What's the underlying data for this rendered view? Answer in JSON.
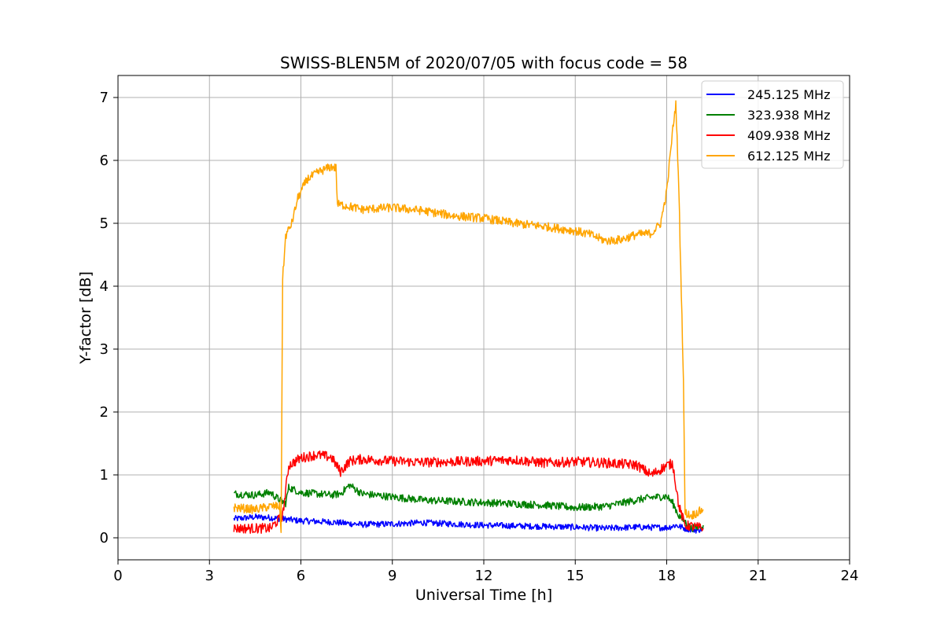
{
  "chart_data": {
    "type": "line",
    "title": "SWISS-BLEN5M of 2020/07/05 with focus code = 58",
    "xlabel": "Universal Time [h]",
    "ylabel": "Y-factor [dB]",
    "xlim": [
      0,
      24
    ],
    "ylim": [
      -0.35,
      7.35
    ],
    "xticks": [
      "0",
      "3",
      "6",
      "9",
      "12",
      "15",
      "18",
      "21",
      "24"
    ],
    "yticks": [
      "0",
      "1",
      "2",
      "3",
      "4",
      "5",
      "6",
      "7"
    ],
    "grid": true,
    "legend_position": "top-right",
    "series": [
      {
        "name": "245.125 MHz",
        "color": "#0000ff",
        "noise": 0.05,
        "points": [
          [
            3.8,
            0.3
          ],
          [
            4.5,
            0.33
          ],
          [
            5.0,
            0.32
          ],
          [
            5.4,
            0.3
          ],
          [
            5.6,
            0.29
          ],
          [
            6.0,
            0.27
          ],
          [
            7.0,
            0.25
          ],
          [
            8.0,
            0.21
          ],
          [
            9.0,
            0.22
          ],
          [
            10.0,
            0.24
          ],
          [
            12.0,
            0.2
          ],
          [
            13.0,
            0.19
          ],
          [
            15.0,
            0.17
          ],
          [
            16.0,
            0.15
          ],
          [
            17.0,
            0.17
          ],
          [
            18.0,
            0.16
          ],
          [
            18.3,
            0.2
          ],
          [
            18.6,
            0.15
          ],
          [
            19.0,
            0.12
          ],
          [
            19.2,
            0.15
          ]
        ]
      },
      {
        "name": "323.938 MHz",
        "color": "#008000",
        "noise": 0.06,
        "points": [
          [
            3.8,
            0.7
          ],
          [
            4.5,
            0.68
          ],
          [
            5.0,
            0.72
          ],
          [
            5.3,
            0.6
          ],
          [
            5.5,
            0.55
          ],
          [
            5.6,
            0.8
          ],
          [
            6.0,
            0.72
          ],
          [
            7.0,
            0.68
          ],
          [
            7.3,
            0.7
          ],
          [
            7.6,
            0.84
          ],
          [
            8.0,
            0.7
          ],
          [
            9.0,
            0.65
          ],
          [
            10.0,
            0.6
          ],
          [
            12.0,
            0.56
          ],
          [
            14.0,
            0.52
          ],
          [
            15.0,
            0.48
          ],
          [
            16.0,
            0.5
          ],
          [
            17.0,
            0.6
          ],
          [
            17.5,
            0.64
          ],
          [
            18.0,
            0.66
          ],
          [
            18.2,
            0.55
          ],
          [
            18.4,
            0.35
          ],
          [
            18.8,
            0.15
          ],
          [
            19.2,
            0.2
          ]
        ]
      },
      {
        "name": "409.938 MHz",
        "color": "#ff0000",
        "noise": 0.08,
        "points": [
          [
            3.8,
            0.15
          ],
          [
            4.5,
            0.15
          ],
          [
            5.0,
            0.15
          ],
          [
            5.4,
            0.35
          ],
          [
            5.6,
            1.15
          ],
          [
            6.0,
            1.27
          ],
          [
            6.5,
            1.32
          ],
          [
            7.0,
            1.28
          ],
          [
            7.3,
            1.05
          ],
          [
            7.6,
            1.22
          ],
          [
            8.0,
            1.25
          ],
          [
            9.0,
            1.22
          ],
          [
            10.0,
            1.2
          ],
          [
            12.0,
            1.22
          ],
          [
            13.0,
            1.24
          ],
          [
            14.0,
            1.19
          ],
          [
            15.0,
            1.21
          ],
          [
            16.0,
            1.19
          ],
          [
            17.0,
            1.16
          ],
          [
            17.5,
            1.0
          ],
          [
            18.0,
            1.15
          ],
          [
            18.2,
            1.18
          ],
          [
            18.4,
            0.5
          ],
          [
            18.6,
            0.2
          ],
          [
            19.2,
            0.15
          ]
        ]
      },
      {
        "name": "612.125 MHz",
        "color": "#ffa500",
        "noise": 0.07,
        "points": [
          [
            3.8,
            0.48
          ],
          [
            4.5,
            0.45
          ],
          [
            5.0,
            0.5
          ],
          [
            5.3,
            0.5
          ],
          [
            5.35,
            0.1
          ],
          [
            5.4,
            4.1
          ],
          [
            5.5,
            4.8
          ],
          [
            5.7,
            5.0
          ],
          [
            5.9,
            5.4
          ],
          [
            6.2,
            5.7
          ],
          [
            6.6,
            5.82
          ],
          [
            7.0,
            5.9
          ],
          [
            7.15,
            5.88
          ],
          [
            7.2,
            5.3
          ],
          [
            7.5,
            5.28
          ],
          [
            8.0,
            5.22
          ],
          [
            9.0,
            5.25
          ],
          [
            10.0,
            5.2
          ],
          [
            11.0,
            5.12
          ],
          [
            12.0,
            5.08
          ],
          [
            13.0,
            5.0
          ],
          [
            14.0,
            4.95
          ],
          [
            15.0,
            4.88
          ],
          [
            15.5,
            4.82
          ],
          [
            16.0,
            4.72
          ],
          [
            16.5,
            4.74
          ],
          [
            17.0,
            4.82
          ],
          [
            17.5,
            4.84
          ],
          [
            17.8,
            5.0
          ],
          [
            18.0,
            5.5
          ],
          [
            18.2,
            6.5
          ],
          [
            18.3,
            6.9
          ],
          [
            18.4,
            5.5
          ],
          [
            18.5,
            3.5
          ],
          [
            18.55,
            2.5
          ],
          [
            18.6,
            0.4
          ],
          [
            18.8,
            0.35
          ],
          [
            19.2,
            0.45
          ]
        ]
      }
    ]
  }
}
